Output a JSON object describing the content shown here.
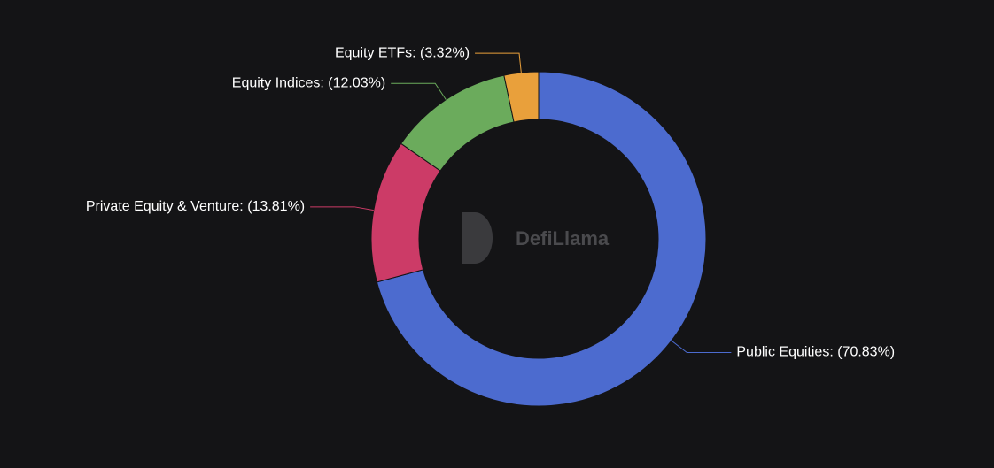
{
  "chart_data": {
    "type": "donut",
    "value_labels": [
      "Public Equities: (70.83%)",
      "Private Equity & Venture: (13.81%)",
      "Equity Indices: (12.03%)",
      "Equity ETFs: (3.32%)"
    ],
    "values": [
      70.83,
      13.81,
      12.03,
      3.32
    ],
    "colors": [
      "#4c6bcf",
      "#cc3b67",
      "#6bab5c",
      "#e9a03b"
    ],
    "watermark": "DefiLlama"
  }
}
